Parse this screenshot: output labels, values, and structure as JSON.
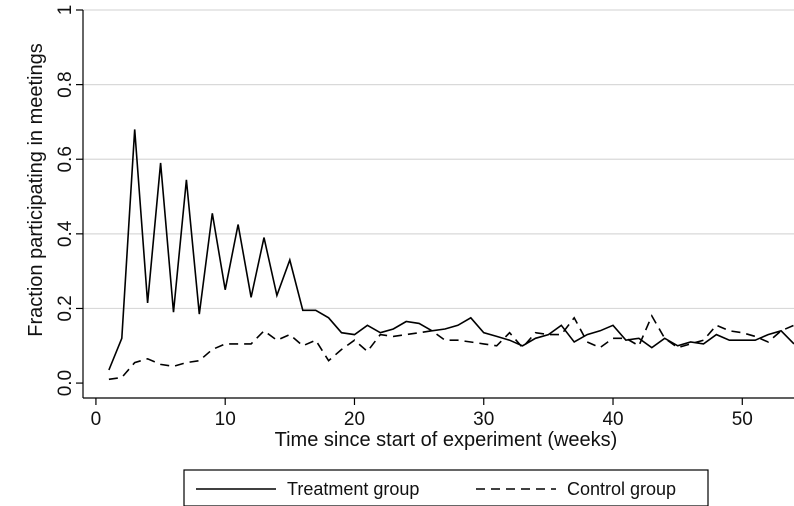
{
  "chart_data": {
    "type": "line",
    "xlabel": "Time since start of experiment (weeks)",
    "ylabel": "Fraction participating in meetings",
    "xlim": [
      -1,
      54
    ],
    "ylim": [
      -0.04,
      1.0
    ],
    "xticks": [
      0,
      10,
      20,
      30,
      40,
      50
    ],
    "yticks": [
      0.0,
      0.2,
      0.4,
      0.6,
      0.8,
      1.0
    ],
    "ytick_labels": [
      "0.0",
      "0.2",
      "0.4",
      "0.6",
      "0.8",
      "1"
    ],
    "grid": "horizontal",
    "legend_position": "bottom",
    "series": [
      {
        "name": "Treatment group",
        "style": "solid",
        "color": "#000000",
        "x": [
          1,
          2,
          3,
          4,
          5,
          6,
          7,
          8,
          9,
          10,
          11,
          12,
          13,
          14,
          15,
          16,
          17,
          18,
          19,
          20,
          21,
          22,
          23,
          24,
          25,
          26,
          27,
          28,
          29,
          30,
          31,
          32,
          33,
          34,
          35,
          36,
          37,
          38,
          39,
          40,
          41,
          42,
          43,
          44,
          45,
          46,
          47,
          48,
          49,
          50,
          51,
          52,
          53,
          54
        ],
        "values": [
          0.035,
          0.12,
          0.68,
          0.215,
          0.59,
          0.19,
          0.545,
          0.185,
          0.455,
          0.25,
          0.425,
          0.23,
          0.39,
          0.235,
          0.33,
          0.195,
          0.195,
          0.175,
          0.135,
          0.13,
          0.155,
          0.135,
          0.145,
          0.165,
          0.16,
          0.14,
          0.145,
          0.155,
          0.175,
          0.135,
          0.125,
          0.115,
          0.1,
          0.12,
          0.13,
          0.155,
          0.11,
          0.13,
          0.14,
          0.155,
          0.115,
          0.12,
          0.095,
          0.12,
          0.1,
          0.11,
          0.105,
          0.13,
          0.115,
          0.115,
          0.115,
          0.13,
          0.14,
          0.105
        ]
      },
      {
        "name": "Control group",
        "style": "dashed",
        "color": "#000000",
        "x": [
          1,
          2,
          3,
          4,
          5,
          6,
          7,
          8,
          9,
          10,
          11,
          12,
          13,
          14,
          15,
          16,
          17,
          18,
          19,
          20,
          21,
          22,
          23,
          24,
          25,
          26,
          27,
          28,
          29,
          30,
          31,
          32,
          33,
          34,
          35,
          36,
          37,
          38,
          39,
          40,
          41,
          42,
          43,
          44,
          45,
          46,
          47,
          48,
          49,
          50,
          51,
          52,
          53,
          54
        ],
        "values": [
          0.01,
          0.015,
          0.055,
          0.065,
          0.05,
          0.045,
          0.055,
          0.06,
          0.09,
          0.105,
          0.105,
          0.105,
          0.14,
          0.115,
          0.13,
          0.1,
          0.115,
          0.06,
          0.09,
          0.115,
          0.085,
          0.13,
          0.125,
          0.13,
          0.135,
          0.14,
          0.115,
          0.115,
          0.11,
          0.105,
          0.1,
          0.135,
          0.095,
          0.135,
          0.13,
          0.13,
          0.175,
          0.11,
          0.095,
          0.12,
          0.12,
          0.1,
          0.18,
          0.12,
          0.095,
          0.105,
          0.115,
          0.155,
          0.14,
          0.135,
          0.125,
          0.11,
          0.14,
          0.155
        ]
      }
    ]
  }
}
